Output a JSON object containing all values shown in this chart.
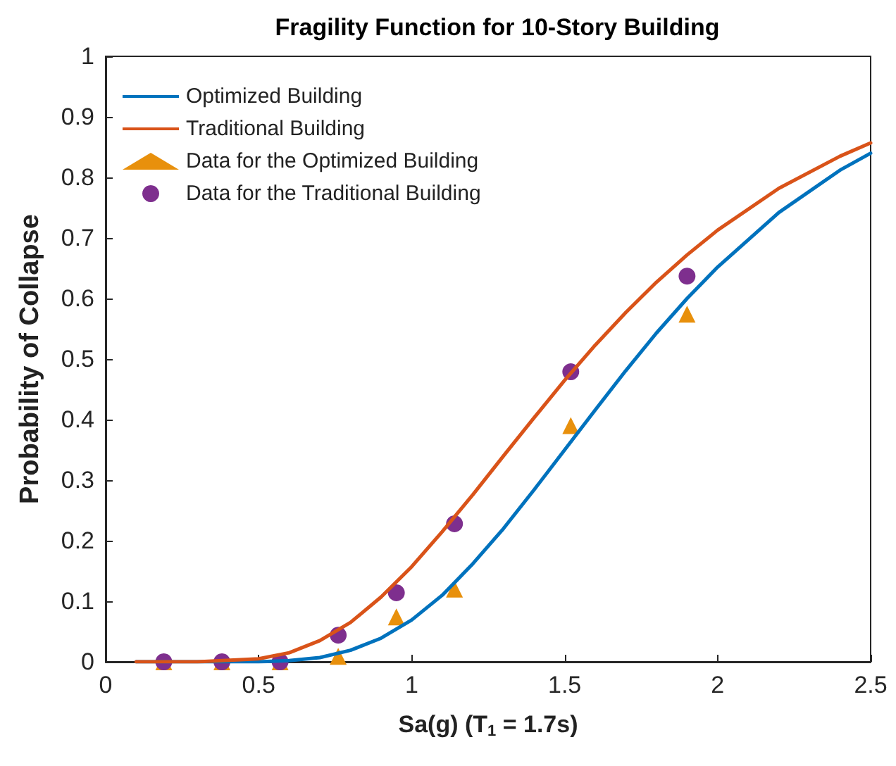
{
  "chart_data": {
    "type": "line",
    "title": "Fragility Function for 10-Story Building",
    "xlabel": "Sa(g) (T$_{1}$ = 1.7s)",
    "ylabel": "Probability of Collapse",
    "xlim": [
      0,
      2.5
    ],
    "xticks": [
      0,
      0.5,
      1,
      1.5,
      2,
      2.5
    ],
    "ylim": [
      0,
      1
    ],
    "yticks": [
      0,
      0.1,
      0.2,
      0.3,
      0.4,
      0.5,
      0.6,
      0.7,
      0.8,
      0.9,
      1
    ],
    "grid": false,
    "legend": "top left",
    "series": [
      {
        "name": "Optimized Building",
        "marker": "none",
        "line_style": "solid",
        "color": "#0072bd",
        "x": [
          0.1,
          0.3,
          0.5,
          0.6,
          0.7,
          0.8,
          0.9,
          1.0,
          1.1,
          1.2,
          1.3,
          1.4,
          1.5,
          1.6,
          1.7,
          1.8,
          1.9,
          2.0,
          2.2,
          2.4,
          2.5
        ],
        "values": [
          0,
          0,
          0,
          0.002,
          0.007,
          0.019,
          0.039,
          0.069,
          0.11,
          0.162,
          0.22,
          0.284,
          0.35,
          0.416,
          0.481,
          0.543,
          0.6,
          0.652,
          0.742,
          0.812,
          0.84
        ]
      },
      {
        "name": "Traditional Building",
        "marker": "none",
        "line_style": "solid",
        "color": "#d95319",
        "x": [
          0.1,
          0.3,
          0.5,
          0.6,
          0.7,
          0.8,
          0.9,
          1.0,
          1.1,
          1.2,
          1.3,
          1.4,
          1.5,
          1.6,
          1.7,
          1.8,
          1.9,
          2.0,
          2.2,
          2.4,
          2.5
        ],
        "values": [
          0,
          0,
          0.005,
          0.015,
          0.035,
          0.065,
          0.107,
          0.157,
          0.215,
          0.276,
          0.34,
          0.403,
          0.465,
          0.523,
          0.577,
          0.627,
          0.672,
          0.713,
          0.782,
          0.835,
          0.857
        ]
      },
      {
        "name": "Data for the Optimized Building",
        "type": "scatter",
        "marker": "triangle",
        "color": "#e8900c",
        "x": [
          0.19,
          0.38,
          0.57,
          0.76,
          0.95,
          1.14,
          1.52,
          1.9
        ],
        "values": [
          0,
          0,
          0,
          0.009,
          0.074,
          0.12,
          0.39,
          0.574
        ]
      },
      {
        "name": "Data for the Traditional Building",
        "type": "scatter",
        "marker": "circle",
        "color": "#7e2f8e",
        "x": [
          0.19,
          0.38,
          0.57,
          0.76,
          0.95,
          1.14,
          1.52,
          1.9
        ],
        "values": [
          0,
          0,
          0,
          0.044,
          0.114,
          0.228,
          0.479,
          0.637
        ]
      }
    ]
  }
}
